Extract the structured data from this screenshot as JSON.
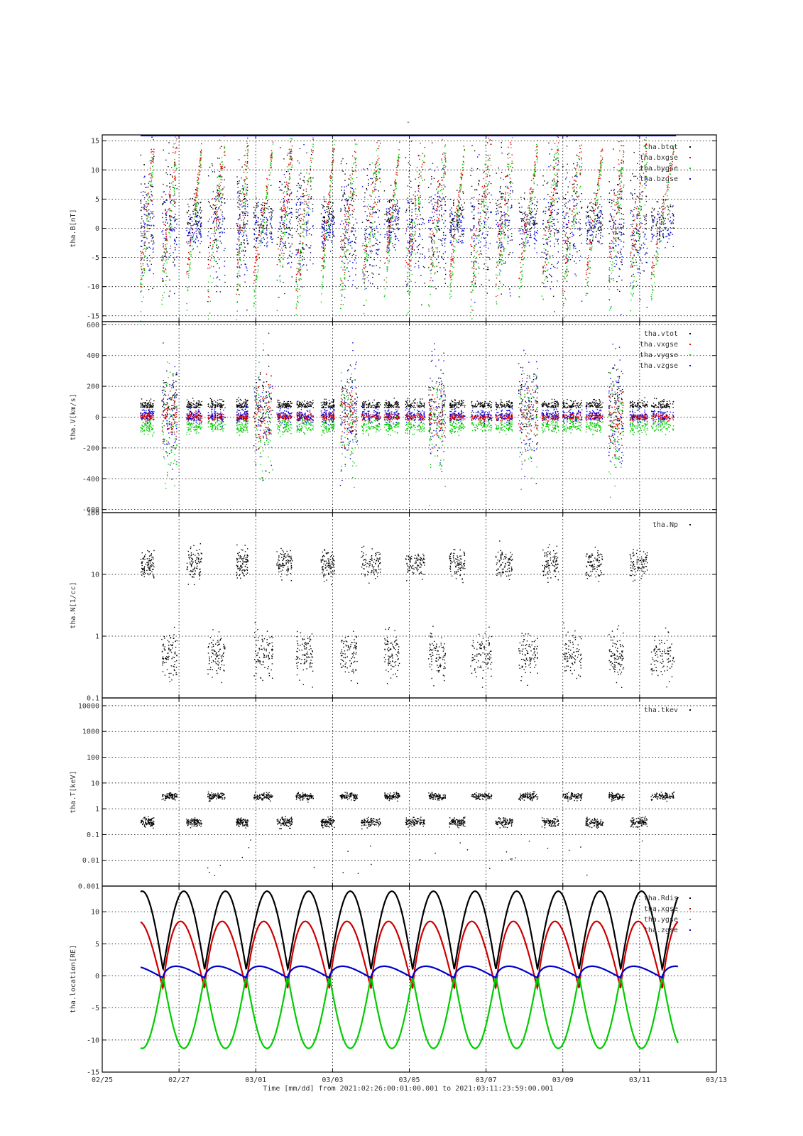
{
  "figure": {
    "top_title": "-",
    "time_caption": "Time [mm/dd]  from 2021:02:26:00:01:00.001  to  2021:03:11:23:59:00.001"
  },
  "chart_data": [
    {
      "type": "scatter",
      "ylabel": "tha.B[nT]",
      "ylim": [
        -16,
        16
      ],
      "log": false,
      "yticks": [
        -15,
        -10,
        -5,
        0,
        5,
        10,
        15
      ],
      "ytick_labels": [
        "-15",
        "-10",
        "-5",
        "0",
        "5",
        "10",
        "15"
      ],
      "legend_placement": "top-right",
      "series": [
        {
          "name": "tha.btot",
          "color": "#000000"
        },
        {
          "name": "tha.bxgse",
          "color": "#dd0000"
        },
        {
          "name": "tha.bygse",
          "color": "#00cc00"
        },
        {
          "name": "tha.bzgse",
          "color": "#0000dd"
        }
      ]
    },
    {
      "type": "scatter",
      "ylabel": "tha.V[km/s]",
      "ylim": [
        -620,
        620
      ],
      "log": false,
      "yticks": [
        -600,
        -400,
        -200,
        0,
        200,
        400,
        600
      ],
      "ytick_labels": [
        "-600",
        "-400",
        "-200",
        "0",
        "200",
        "400",
        "600"
      ],
      "legend_placement": "top-right",
      "series": [
        {
          "name": "tha.vtot",
          "color": "#000000"
        },
        {
          "name": "tha.vxgse",
          "color": "#dd0000"
        },
        {
          "name": "tha.vygse",
          "color": "#00cc00"
        },
        {
          "name": "tha.vzgse",
          "color": "#0000dd"
        }
      ]
    },
    {
      "type": "scatter",
      "ylabel": "tha.N[1/cc]",
      "ylim": [
        0.1,
        100
      ],
      "log": true,
      "yticks": [
        0.1,
        1,
        10,
        100
      ],
      "ytick_labels": [
        "0.1",
        "1",
        "10",
        "100"
      ],
      "legend_placement": "top-right",
      "series": [
        {
          "name": "tha.Np",
          "color": "#000000"
        }
      ]
    },
    {
      "type": "scatter",
      "ylabel": "tha.T[keV]",
      "ylim": [
        0.001,
        20000
      ],
      "log": true,
      "yticks": [
        0.001,
        0.01,
        0.1,
        1,
        10,
        100,
        1000,
        10000
      ],
      "ytick_labels": [
        "0.001",
        "0.01",
        "0.1",
        "1",
        "10",
        "100",
        "1000",
        "10000"
      ],
      "legend_placement": "top-right",
      "series": [
        {
          "name": "tha.tkev",
          "color": "#000000"
        }
      ]
    },
    {
      "type": "line",
      "ylabel": "tha.location[RE]",
      "ylim": [
        -15,
        14
      ],
      "log": false,
      "yticks": [
        -15,
        -10,
        -5,
        0,
        5,
        10
      ],
      "ytick_labels": [
        "-15",
        "-10",
        "-5",
        "0",
        "5",
        "10"
      ],
      "legend_placement": "top-right",
      "series": [
        {
          "name": "tha.Rdis",
          "color": "#000000"
        },
        {
          "name": "tha.xgse",
          "color": "#cc0000"
        },
        {
          "name": "tha.ygse",
          "color": "#00cc00"
        },
        {
          "name": "tha.zgse",
          "color": "#0000cc"
        }
      ],
      "orbit_period_days": 1.084,
      "orbit_first_perigee": "2021-02-26 14:00",
      "x_end": "2021-03-12 00:00"
    }
  ],
  "x_axis": {
    "range": [
      "2021-02-25",
      "2021-03-13"
    ],
    "ticks": [
      "2021-02-25",
      "2021-02-27",
      "2021-03-01",
      "2021-03-03",
      "2021-03-05",
      "2021-03-07",
      "2021-03-09",
      "2021-03-11",
      "2021-03-13"
    ],
    "tick_labels": [
      "02/25",
      "02/27",
      "03/01",
      "03/03",
      "03/05",
      "03/07",
      "03/09",
      "03/11",
      "03/13"
    ]
  }
}
